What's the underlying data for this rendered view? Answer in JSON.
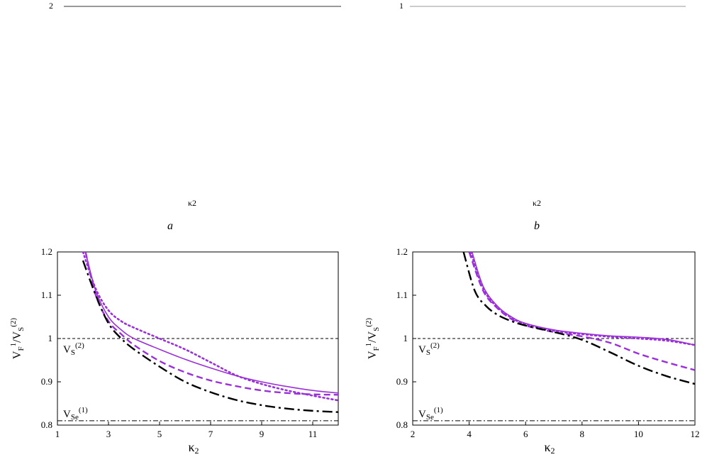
{
  "top_panels": {
    "a": {
      "letter": "a",
      "ytop_tick": "2",
      "xlabel_fragment": "κ2"
    },
    "b": {
      "letter": "b",
      "ytop_tick": "1",
      "xlabel_fragment": "κ2"
    }
  },
  "chart_data": [
    {
      "type": "line",
      "xlabel": "κ2",
      "ylabel": "V_F^1/V_S^(2)",
      "xlim": [
        1,
        12
      ],
      "ylim": [
        0.8,
        1.2
      ],
      "xticks": [
        1,
        3,
        5,
        7,
        9,
        11
      ],
      "yticks": [
        0.8,
        0.9,
        1.0,
        1.1,
        1.2
      ],
      "ytick_labels": [
        "0.8",
        "0.9",
        "1",
        "1.1",
        "1.2"
      ],
      "grid": false,
      "reference_lines": [
        {
          "y": 1.0,
          "label": "V_S^(2)",
          "style": "dashed"
        },
        {
          "y": 0.81,
          "label": "V_Se^(1)",
          "style": "dashdot"
        }
      ],
      "series": [
        {
          "style": "solid",
          "color": "#9b30d9",
          "x": [
            2.1,
            2.5,
            3,
            3.5,
            4,
            5,
            6,
            7,
            8,
            9,
            10,
            11,
            12
          ],
          "y": [
            1.2,
            1.11,
            1.05,
            1.02,
            1.0,
            0.975,
            0.952,
            0.932,
            0.914,
            0.9,
            0.889,
            0.88,
            0.874
          ]
        },
        {
          "style": "dashed",
          "color": "#9b30d9",
          "x": [
            2.1,
            2.5,
            3,
            3.5,
            4,
            5,
            6,
            7,
            8,
            9,
            10,
            11,
            12
          ],
          "y": [
            1.2,
            1.1,
            1.04,
            1.01,
            0.985,
            0.948,
            0.922,
            0.903,
            0.89,
            0.88,
            0.874,
            0.871,
            0.87
          ]
        },
        {
          "style": "dotted",
          "color": "#9b30d9",
          "x": [
            2.0,
            2.5,
            3,
            3.5,
            4,
            5,
            6,
            7,
            8,
            9,
            10,
            11,
            12
          ],
          "y": [
            1.2,
            1.115,
            1.065,
            1.04,
            1.025,
            1.0,
            0.975,
            0.945,
            0.915,
            0.895,
            0.88,
            0.868,
            0.857
          ]
        },
        {
          "style": "dashdot-long",
          "color": "#000000",
          "x": [
            2.0,
            2.5,
            3,
            3.5,
            4,
            5,
            6,
            7,
            8,
            9,
            10,
            11,
            12
          ],
          "y": [
            1.18,
            1.1,
            1.035,
            1.0,
            0.975,
            0.935,
            0.9,
            0.876,
            0.858,
            0.846,
            0.838,
            0.833,
            0.83
          ]
        }
      ]
    },
    {
      "type": "line",
      "xlabel": "κ2",
      "ylabel": "V_F^1/V_S^(2)",
      "xlim": [
        2,
        12
      ],
      "ylim": [
        0.8,
        1.2
      ],
      "xticks": [
        2,
        4,
        6,
        8,
        10,
        12
      ],
      "yticks": [
        0.8,
        0.9,
        1.0,
        1.1,
        1.2
      ],
      "ytick_labels": [
        "0.8",
        "0.9",
        "1",
        "1.1",
        "1.2"
      ],
      "grid": false,
      "reference_lines": [
        {
          "y": 1.0,
          "label": "V_S^(2)",
          "style": "dashed"
        },
        {
          "y": 0.81,
          "label": "V_Se^(1)",
          "style": "dashdot"
        }
      ],
      "series": [
        {
          "style": "solid",
          "color": "#9b30d9",
          "x": [
            4.1,
            4.5,
            5,
            5.5,
            6,
            7,
            8,
            9,
            10,
            11,
            12
          ],
          "y": [
            1.2,
            1.12,
            1.075,
            1.05,
            1.035,
            1.02,
            1.012,
            1.006,
            1.003,
            0.998,
            0.985
          ]
        },
        {
          "style": "dashed",
          "color": "#9b30d9",
          "x": [
            4.0,
            4.5,
            5,
            5.5,
            6,
            7,
            8,
            9,
            10,
            11,
            12
          ],
          "y": [
            1.2,
            1.11,
            1.07,
            1.045,
            1.03,
            1.015,
            1.005,
            0.99,
            0.965,
            0.945,
            0.927
          ]
        },
        {
          "style": "dotted",
          "color": "#9b30d9",
          "x": [
            4.05,
            4.5,
            5,
            5.5,
            6,
            7,
            8,
            9,
            10,
            11,
            12
          ],
          "y": [
            1.2,
            1.115,
            1.072,
            1.048,
            1.033,
            1.018,
            1.01,
            1.004,
            1.0,
            0.995,
            0.985
          ]
        },
        {
          "style": "dashdot-long",
          "color": "#000000",
          "x": [
            3.8,
            4.2,
            4.6,
            5,
            5.5,
            6,
            7,
            8,
            9,
            10,
            11,
            12
          ],
          "y": [
            1.2,
            1.11,
            1.075,
            1.055,
            1.04,
            1.03,
            1.015,
            0.997,
            0.968,
            0.937,
            0.913,
            0.895
          ]
        }
      ]
    }
  ]
}
